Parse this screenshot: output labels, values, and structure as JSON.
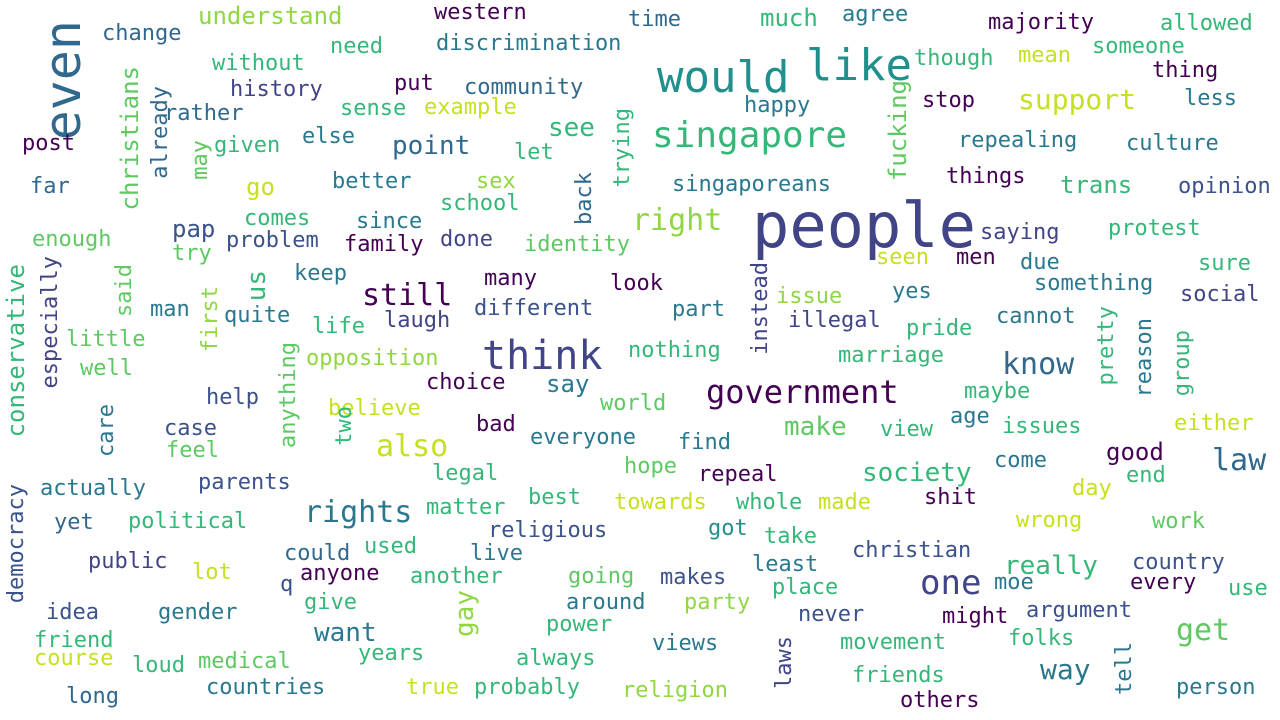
{
  "palette": {
    "purple": "#440154",
    "indigo": "#3b528b",
    "navy": "#414487",
    "blue": "#31688e",
    "teal": "#21908d",
    "cyan": "#2a788e",
    "green": "#35b779",
    "lime": "#5ec962",
    "olive": "#90d743",
    "yellow": "#c7e020",
    "gold": "#fde725"
  },
  "words": [
    "people",
    "would",
    "like",
    "singapore",
    "even",
    "think",
    "government",
    "one",
    "rights",
    "still",
    "also",
    "know",
    "get",
    "want",
    "gay",
    "right",
    "law",
    "way",
    "support",
    "us",
    "understand",
    "western",
    "time",
    "much",
    "agree",
    "majority",
    "allowed",
    "change",
    "without",
    "need",
    "discrimination",
    "though",
    "mean",
    "someone",
    "thing",
    "history",
    "put",
    "community",
    "happy",
    "stop",
    "less",
    "rather",
    "sense",
    "example",
    "fucking",
    "repealing",
    "culture",
    "post",
    "given",
    "else",
    "point",
    "see",
    "let",
    "trying",
    "things",
    "christians",
    "already",
    "may",
    "far",
    "better",
    "sex",
    "singaporeans",
    "trans",
    "opinion",
    "go",
    "comes",
    "since",
    "school",
    "back",
    "pap",
    "problem",
    "family",
    "done",
    "identity",
    "saying",
    "protest",
    "enough",
    "try",
    "keep",
    "seen",
    "men",
    "due",
    "sure",
    "many",
    "look",
    "something",
    "social",
    "conservative",
    "especially",
    "said",
    "man",
    "quite",
    "life",
    "laugh",
    "different",
    "part",
    "issue",
    "yes",
    "little",
    "first",
    "illegal",
    "pride",
    "cannot",
    "instead",
    "nothing",
    "marriage",
    "pretty",
    "reason",
    "group",
    "well",
    "opposition",
    "choice",
    "say",
    "anything",
    "maybe",
    "help",
    "believe",
    "world",
    "age",
    "care",
    "case",
    "bad",
    "everyone",
    "view",
    "issues",
    "either",
    "two",
    "feel",
    "find",
    "good",
    "hope",
    "make",
    "society",
    "come",
    "legal",
    "repeal",
    "end",
    "actually",
    "parents",
    "day",
    "best",
    "shit",
    "democracy",
    "yet",
    "political",
    "matter",
    "towards",
    "whole",
    "made",
    "wrong",
    "work",
    "religious",
    "got",
    "take",
    "christian",
    "really",
    "country",
    "public",
    "live",
    "could",
    "used",
    "lot",
    "least",
    "anyone",
    "another",
    "going",
    "makes",
    "place",
    "moe",
    "every",
    "use",
    "idea",
    "gender",
    "q",
    "give",
    "around",
    "party",
    "never",
    "might",
    "argument",
    "friend",
    "course",
    "power",
    "movement",
    "folks",
    "loud",
    "medical",
    "years",
    "always",
    "views",
    "laws",
    "tell",
    "friends",
    "long",
    "countries",
    "true",
    "probably",
    "religion",
    "others",
    "person"
  ]
}
